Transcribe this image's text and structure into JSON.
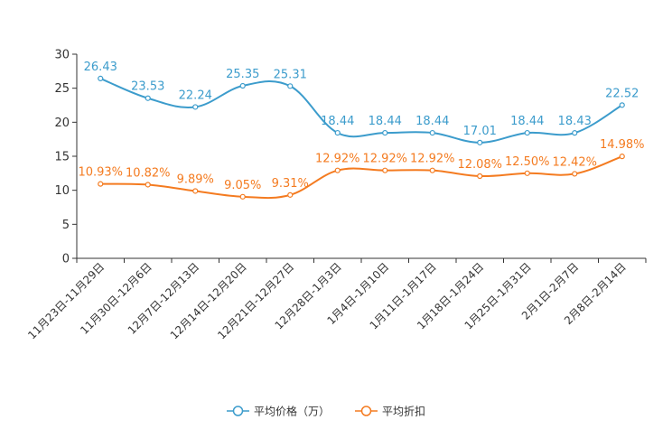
{
  "chart_data": {
    "type": "line",
    "title": "",
    "xlabel": "",
    "ylabel": "",
    "ylim": [
      0,
      30
    ],
    "yticks": [
      0,
      5,
      10,
      15,
      20,
      25,
      30
    ],
    "grid": false,
    "legend_position": "bottom",
    "categories": [
      "11月23日-11月29日",
      "11月30日-12月6日",
      "12月7日-12月13日",
      "12月14日-12月20日",
      "12月21日-12月27日",
      "12月28日-1月3日",
      "1月4日-1月10日",
      "1月11日-1月17日",
      "1月18日-1月24日",
      "1月25日-1月31日",
      "2月1日-2月7日",
      "2月8日-2月14日"
    ],
    "series": [
      {
        "name": "平均价格（万）",
        "color": "#3c9ccc",
        "values": [
          26.43,
          23.53,
          22.24,
          25.35,
          25.31,
          18.44,
          18.44,
          18.44,
          17.01,
          18.44,
          18.43,
          22.52
        ],
        "labels": [
          "26.43",
          "23.53",
          "22.24",
          "25.35",
          "25.31",
          "18.44",
          "18.44",
          "18.44",
          "17.01",
          "18.44",
          "18.43",
          "22.52"
        ]
      },
      {
        "name": "平均折扣",
        "color": "#f47b20",
        "values": [
          10.93,
          10.82,
          9.89,
          9.05,
          9.31,
          12.92,
          12.92,
          12.92,
          12.08,
          12.5,
          12.42,
          14.98
        ],
        "labels": [
          "10.93%",
          "10.82%",
          "9.89%",
          "9.05%",
          "9.31%",
          "12.92%",
          "12.92%",
          "12.92%",
          "12.08%",
          "12.50%",
          "12.42%",
          "14.98%"
        ]
      }
    ]
  }
}
